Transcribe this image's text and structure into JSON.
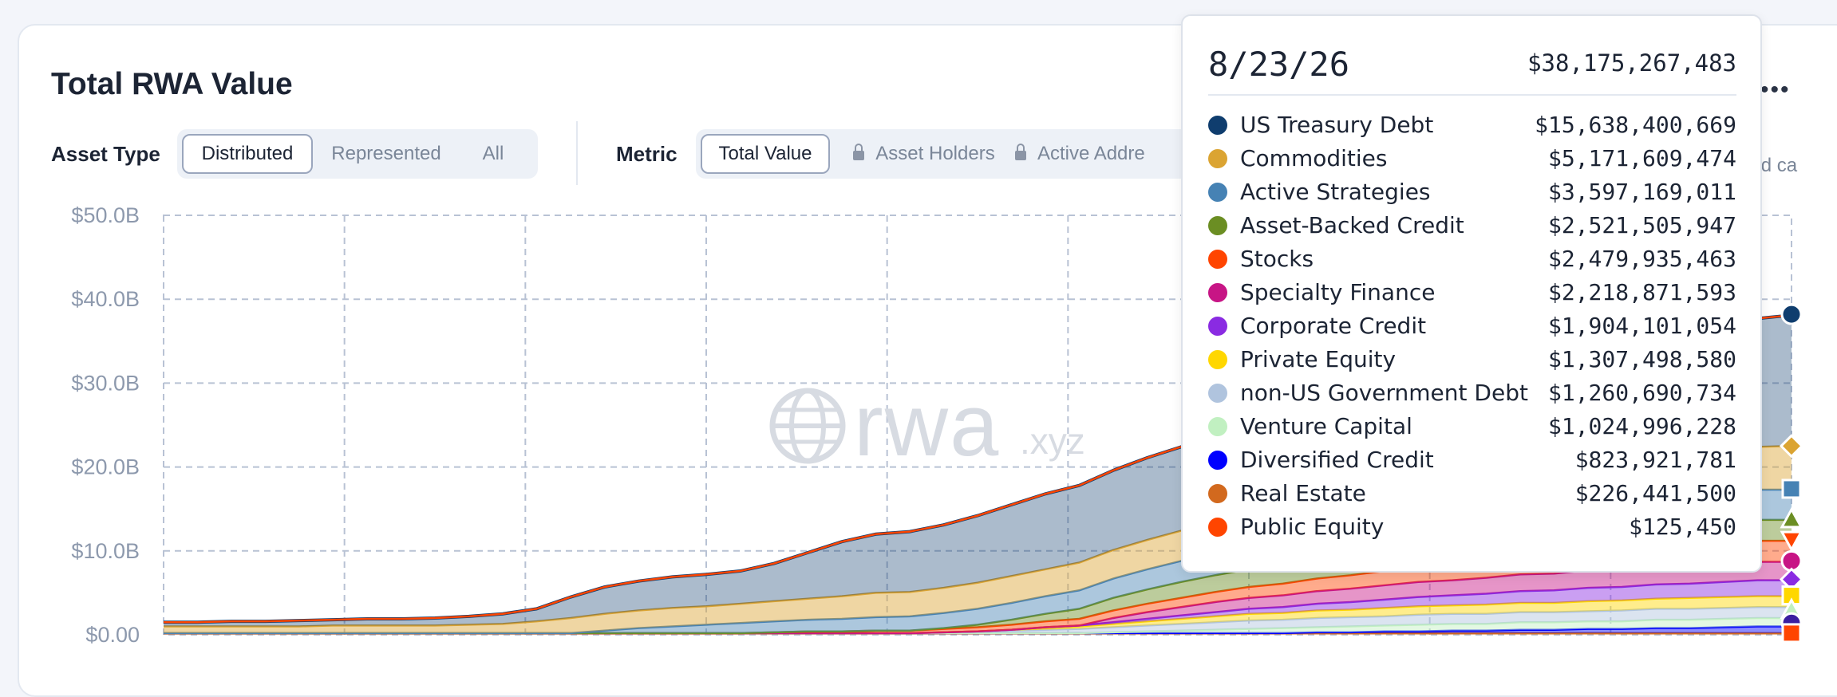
{
  "header": {
    "title": "Total RWA Value",
    "menu_icon": "more-horizontal-icon",
    "cut_off_text": "and ca"
  },
  "filters": {
    "asset_type": {
      "label": "Asset Type",
      "options": [
        "Distributed",
        "Represented",
        "All"
      ],
      "selected": "Distributed"
    },
    "metric": {
      "label": "Metric",
      "options": [
        {
          "label": "Total Value",
          "locked": false
        },
        {
          "label": "Asset Holders",
          "locked": true
        },
        {
          "label": "Active Addre",
          "locked": true
        }
      ],
      "selected": "Total Value"
    }
  },
  "watermark": {
    "text": "rwa",
    "suffix": ".xyz",
    "icon": "globe-icon"
  },
  "tooltip": {
    "date": "8/23/26",
    "total": "$38,175,267,483",
    "rows": [
      {
        "name": "US Treasury Debt",
        "value": "$15,638,400,669",
        "color": "#0f3d6e"
      },
      {
        "name": "Commodities",
        "value": "$5,171,609,474",
        "color": "#dba432"
      },
      {
        "name": "Active Strategies",
        "value": "$3,597,169,011",
        "color": "#4682b4"
      },
      {
        "name": "Asset-Backed Credit",
        "value": "$2,521,505,947",
        "color": "#6b8e23"
      },
      {
        "name": "Stocks",
        "value": "$2,479,935,463",
        "color": "#ff4500"
      },
      {
        "name": "Specialty Finance",
        "value": "$2,218,871,593",
        "color": "#c71585"
      },
      {
        "name": "Corporate Credit",
        "value": "$1,904,101,054",
        "color": "#8a2be2"
      },
      {
        "name": "Private Equity",
        "value": "$1,307,498,580",
        "color": "#ffd700"
      },
      {
        "name": "non-US Government Debt",
        "value": "$1,260,690,734",
        "color": "#b0c4de"
      },
      {
        "name": "Venture Capital",
        "value": "$1,024,996,228",
        "color": "#c1f0c1"
      },
      {
        "name": "Diversified Credit",
        "value": "$823,921,781",
        "color": "#0000ff"
      },
      {
        "name": "Real Estate",
        "value": "$226,441,500",
        "color": "#d2691e"
      },
      {
        "name": "Public Equity",
        "value": "$125,450",
        "color": "#ff4500"
      }
    ]
  },
  "chart_data": {
    "type": "area",
    "stacked": true,
    "y_ticks": [
      "$50.0B",
      "$40.0B",
      "$30.0B",
      "$20.0B",
      "$10.0B",
      "$0.00"
    ],
    "ylim": [
      0,
      50
    ],
    "grid": true,
    "x": [
      0,
      1,
      2,
      3,
      4,
      5,
      6,
      7,
      8,
      9,
      10,
      11,
      12,
      13,
      14,
      15,
      16,
      17,
      18,
      19,
      20,
      21,
      22,
      23,
      24,
      25,
      26,
      27,
      28,
      29,
      30,
      31,
      32,
      33,
      34,
      35,
      36,
      37,
      38,
      39,
      40,
      41,
      42,
      43,
      44,
      45,
      46,
      47,
      48
    ],
    "series": [
      {
        "name": "Real Estate",
        "color": "#d2691e",
        "values": [
          0.2,
          0.2,
          0.2,
          0.2,
          0.2,
          0.2,
          0.2,
          0.2,
          0.2,
          0.2,
          0.2,
          0.2,
          0.2,
          0.2,
          0.2,
          0.2,
          0.2,
          0.2,
          0.2,
          0.2,
          0.2,
          0.2,
          0.2,
          0.2,
          0.2,
          0.2,
          0.2,
          0.2,
          0.2,
          0.2,
          0.2,
          0.2,
          0.2,
          0.2,
          0.2,
          0.2,
          0.2,
          0.2,
          0.2,
          0.2,
          0.2,
          0.2,
          0.2,
          0.2,
          0.2,
          0.2,
          0.2,
          0.2,
          0.2
        ]
      },
      {
        "name": "Diversified Credit",
        "color": "#0000ff",
        "values": [
          0,
          0,
          0,
          0,
          0,
          0,
          0,
          0,
          0,
          0,
          0,
          0,
          0,
          0,
          0,
          0,
          0,
          0,
          0,
          0,
          0,
          0,
          0,
          0,
          0,
          0,
          0,
          0,
          0,
          0,
          0,
          0,
          0,
          0,
          0.1,
          0.1,
          0.2,
          0.2,
          0.3,
          0.3,
          0.4,
          0.4,
          0.5,
          0.5,
          0.6,
          0.6,
          0.7,
          0.8,
          0.8
        ]
      },
      {
        "name": "Venture Capital",
        "color": "#c1f0c1",
        "values": [
          0,
          0,
          0,
          0,
          0,
          0,
          0,
          0,
          0,
          0,
          0,
          0,
          0,
          0,
          0,
          0,
          0,
          0,
          0,
          0,
          0,
          0,
          0,
          0,
          0,
          0,
          0,
          0,
          0.1,
          0.2,
          0.3,
          0.4,
          0.5,
          0.6,
          0.6,
          0.7,
          0.7,
          0.8,
          0.8,
          0.8,
          0.9,
          0.9,
          0.9,
          0.9,
          1.0,
          1.0,
          1.0,
          1.0,
          1.0
        ]
      },
      {
        "name": "non-US Government Debt",
        "color": "#b0c4de",
        "values": [
          0,
          0,
          0,
          0,
          0,
          0,
          0,
          0,
          0,
          0,
          0,
          0,
          0,
          0,
          0,
          0,
          0,
          0,
          0,
          0,
          0,
          0,
          0,
          0.1,
          0.2,
          0.3,
          0.4,
          0.5,
          0.6,
          0.7,
          0.8,
          0.9,
          1.0,
          1.0,
          1.1,
          1.1,
          1.1,
          1.2,
          1.2,
          1.2,
          1.2,
          1.2,
          1.2,
          1.3,
          1.3,
          1.3,
          1.3,
          1.3,
          1.3
        ]
      },
      {
        "name": "Private Equity",
        "color": "#ffd700",
        "values": [
          0,
          0,
          0,
          0,
          0,
          0,
          0,
          0,
          0,
          0,
          0,
          0,
          0,
          0,
          0,
          0,
          0,
          0,
          0,
          0,
          0,
          0,
          0,
          0,
          0,
          0.1,
          0.2,
          0.3,
          0.4,
          0.5,
          0.6,
          0.7,
          0.8,
          0.8,
          0.9,
          0.9,
          1.0,
          1.0,
          1.0,
          1.1,
          1.1,
          1.1,
          1.2,
          1.2,
          1.2,
          1.3,
          1.3,
          1.3,
          1.3
        ]
      },
      {
        "name": "Corporate Credit",
        "color": "#8a2be2",
        "values": [
          0,
          0,
          0,
          0,
          0,
          0,
          0,
          0,
          0,
          0,
          0,
          0,
          0,
          0,
          0,
          0,
          0,
          0,
          0,
          0,
          0,
          0,
          0,
          0,
          0,
          0,
          0.1,
          0.1,
          0.2,
          0.3,
          0.4,
          0.5,
          0.6,
          0.7,
          0.8,
          0.9,
          1.0,
          1.1,
          1.2,
          1.3,
          1.4,
          1.5,
          1.6,
          1.6,
          1.7,
          1.7,
          1.8,
          1.9,
          1.9
        ]
      },
      {
        "name": "Specialty Finance",
        "color": "#c71585",
        "values": [
          0,
          0,
          0,
          0,
          0,
          0,
          0,
          0,
          0,
          0,
          0,
          0,
          0,
          0,
          0,
          0,
          0,
          0,
          0,
          0,
          0,
          0,
          0,
          0,
          0,
          0,
          0,
          0,
          0.5,
          0.8,
          1.0,
          1.2,
          1.3,
          1.4,
          1.5,
          1.6,
          1.7,
          1.8,
          1.8,
          1.9,
          2.0,
          2.0,
          2.1,
          2.1,
          2.1,
          2.2,
          2.2,
          2.2,
          2.2
        ]
      },
      {
        "name": "Stocks",
        "color": "#ff4500",
        "values": [
          0,
          0,
          0,
          0,
          0,
          0,
          0,
          0,
          0,
          0,
          0,
          0,
          0,
          0,
          0,
          0,
          0,
          0,
          0.1,
          0.2,
          0.2,
          0.3,
          0.3,
          0.4,
          0.5,
          0.6,
          0.7,
          0.8,
          0.9,
          1.0,
          1.1,
          1.2,
          1.3,
          1.4,
          1.5,
          1.6,
          1.7,
          1.8,
          1.9,
          2.0,
          2.1,
          2.2,
          2.2,
          2.3,
          2.3,
          2.4,
          2.4,
          2.5,
          2.5
        ]
      },
      {
        "name": "Asset-Backed Credit",
        "color": "#6b8e23",
        "values": [
          0,
          0,
          0,
          0,
          0,
          0,
          0,
          0,
          0,
          0,
          0,
          0,
          0,
          0,
          0,
          0,
          0,
          0,
          0,
          0,
          0,
          0,
          0,
          0.1,
          0.3,
          0.6,
          0.9,
          1.2,
          1.5,
          1.7,
          1.9,
          2.0,
          2.1,
          2.2,
          2.3,
          2.3,
          2.4,
          2.4,
          2.4,
          2.5,
          2.5,
          2.5,
          2.5,
          2.5,
          2.5,
          2.5,
          2.5,
          2.5,
          2.5
        ]
      },
      {
        "name": "Active Strategies",
        "color": "#4682b4",
        "values": [
          0,
          0,
          0,
          0,
          0,
          0,
          0,
          0,
          0,
          0,
          0,
          0,
          0,
          0.3,
          0.6,
          0.8,
          1.0,
          1.2,
          1.3,
          1.4,
          1.5,
          1.6,
          1.7,
          1.8,
          1.9,
          2.0,
          2.1,
          2.2,
          2.3,
          2.4,
          2.5,
          2.6,
          2.7,
          2.8,
          2.9,
          3.0,
          3.1,
          3.2,
          3.3,
          3.3,
          3.4,
          3.4,
          3.5,
          3.5,
          3.5,
          3.6,
          3.6,
          3.6,
          3.6
        ]
      },
      {
        "name": "Commodities",
        "color": "#dba432",
        "values": [
          0.8,
          0.8,
          0.8,
          0.8,
          0.8,
          0.9,
          0.9,
          0.9,
          0.9,
          1.0,
          1.1,
          1.4,
          1.8,
          2.0,
          2.1,
          2.2,
          2.2,
          2.3,
          2.4,
          2.5,
          2.7,
          2.9,
          2.9,
          3.0,
          3.1,
          3.2,
          3.2,
          3.3,
          3.4,
          3.5,
          3.6,
          3.7,
          3.8,
          3.9,
          4.0,
          4.1,
          4.2,
          4.3,
          4.4,
          4.5,
          4.6,
          4.7,
          4.8,
          4.9,
          5.0,
          5.0,
          5.1,
          5.1,
          5.2
        ]
      },
      {
        "name": "US Treasury Debt",
        "color": "#0f3d6e",
        "values": [
          0.5,
          0.5,
          0.6,
          0.6,
          0.7,
          0.7,
          0.8,
          0.8,
          0.9,
          1.0,
          1.2,
          1.5,
          2.5,
          3.2,
          3.5,
          3.7,
          3.8,
          3.9,
          4.5,
          5.5,
          6.5,
          7.0,
          7.2,
          7.5,
          8.0,
          8.5,
          9.0,
          9.2,
          9.5,
          9.8,
          10.0,
          10.3,
          10.6,
          11.0,
          11.3,
          11.6,
          11.9,
          12.2,
          12.5,
          12.8,
          13.1,
          13.4,
          13.7,
          14.0,
          14.3,
          14.6,
          15.0,
          15.3,
          15.6
        ]
      },
      {
        "name": "Public Equity",
        "color": "#ff4500",
        "values": [
          0,
          0,
          0,
          0,
          0,
          0,
          0,
          0,
          0,
          0,
          0,
          0,
          0,
          0,
          0,
          0,
          0,
          0,
          0,
          0,
          0,
          0,
          0,
          0,
          0,
          0,
          0,
          0,
          0,
          0,
          0,
          0,
          0,
          0,
          0,
          0,
          0,
          0,
          0,
          0,
          0,
          0,
          0,
          0,
          0,
          0,
          0,
          0,
          0
        ]
      }
    ],
    "end_markers": [
      {
        "name": "US Treasury Debt",
        "shape": "circle",
        "color": "#0f3d6e",
        "y": 38.2
      },
      {
        "name": "Commodities",
        "shape": "diamond",
        "color": "#dba432",
        "y": 22.5
      },
      {
        "name": "Active Strategies",
        "shape": "square",
        "color": "#4682b4",
        "y": 17.4
      },
      {
        "name": "Asset-Backed Credit",
        "shape": "triangle-up",
        "color": "#6b8e23",
        "y": 13.8
      },
      {
        "name": "Stocks",
        "shape": "triangle-down",
        "color": "#ff4500",
        "y": 11.3
      },
      {
        "name": "Specialty Finance",
        "shape": "circle",
        "color": "#c71585",
        "y": 8.8
      },
      {
        "name": "Corporate Credit",
        "shape": "diamond",
        "color": "#8a2be2",
        "y": 6.6
      },
      {
        "name": "Private Equity",
        "shape": "square",
        "color": "#ffd700",
        "y": 4.7
      },
      {
        "name": "Venture Capital",
        "shape": "triangle-up",
        "color": "#c1f0c1",
        "y": 3.0
      },
      {
        "name": "Diversified Credit",
        "shape": "circle",
        "color": "#3b1fa0",
        "y": 1.4
      },
      {
        "name": "Real Estate",
        "shape": "square",
        "color": "#ff4500",
        "y": 0.2
      }
    ]
  }
}
